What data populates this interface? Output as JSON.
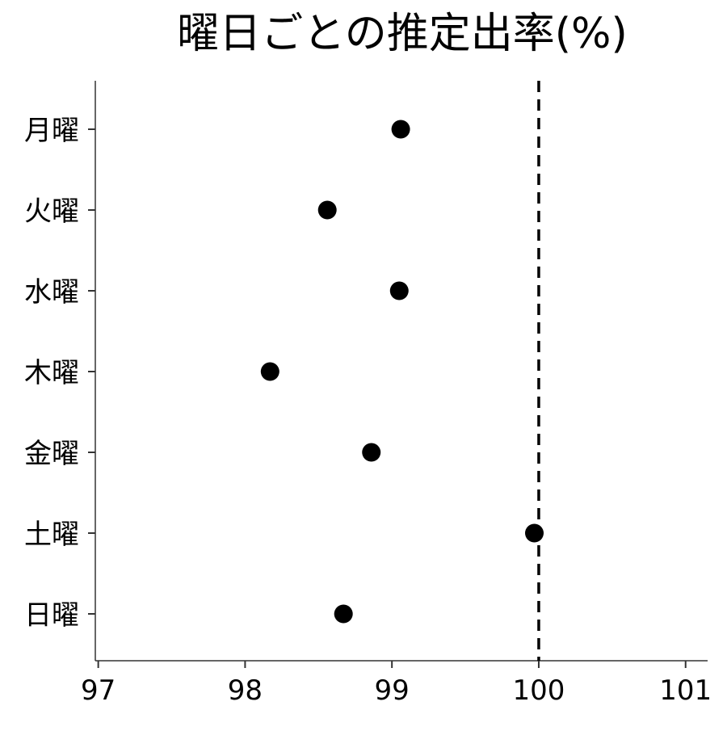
{
  "chart_data": {
    "type": "scatter",
    "title": "曜日ごとの推定出率(%)",
    "xlabel": "",
    "ylabel": "",
    "categories": [
      "月曜",
      "火曜",
      "水曜",
      "木曜",
      "金曜",
      "土曜",
      "日曜"
    ],
    "series": [
      {
        "values": [
          99.06,
          98.56,
          99.05,
          98.17,
          98.86,
          99.97,
          98.67
        ]
      }
    ],
    "xlim": [
      96.98,
      101.15
    ],
    "xticks": [
      "97",
      "98",
      "99",
      "100",
      "101"
    ],
    "reference_line": {
      "x": 100,
      "style": "dashed"
    },
    "grid": false,
    "colors": {
      "points": "#000000",
      "axis": "#333333",
      "reference_line": "#000000"
    }
  }
}
